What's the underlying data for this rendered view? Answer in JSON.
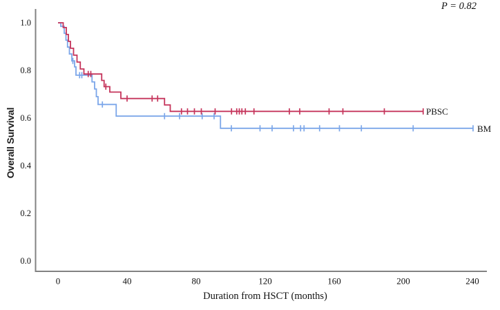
{
  "figure": {
    "p_value": "P = 0.82",
    "x_axis_title": "Duration from HSCT (months)",
    "y_axis_title": "Overall Survival",
    "series_labels": {
      "pbsc": "PBSC",
      "bm": "BM"
    }
  },
  "chart_data": {
    "type": "line",
    "subtype": "kaplan-meier-step",
    "title": "",
    "xlabel": "Duration from HSCT (months)",
    "ylabel": "Overall Survival",
    "annotation": "P = 0.82",
    "grid": false,
    "legend_position": "end-of-line",
    "x_ticks": [
      0,
      40,
      80,
      120,
      160,
      200,
      240
    ],
    "y_ticks": [
      0.0,
      0.2,
      0.4,
      0.6,
      0.8,
      1.0
    ],
    "xlim": [
      -13,
      248
    ],
    "ylim": [
      -0.045,
      1.06
    ],
    "axis_color": "#828282",
    "text_color": "#111111",
    "series": [
      {
        "name": "BM",
        "color": "#7BA6E9",
        "steps": [
          [
            0,
            1.0
          ],
          [
            1.6,
            0.985
          ],
          [
            3.6,
            0.956
          ],
          [
            4.6,
            0.927
          ],
          [
            5.5,
            0.898
          ],
          [
            6.6,
            0.869
          ],
          [
            8,
            0.84
          ],
          [
            9.6,
            0.815
          ],
          [
            10.4,
            0.78
          ],
          [
            19.7,
            0.752
          ],
          [
            21.2,
            0.722
          ],
          [
            22.2,
            0.69
          ],
          [
            23.2,
            0.657
          ],
          [
            33.7,
            0.608
          ],
          [
            94.1,
            0.557
          ]
        ],
        "end_time": 240.4,
        "final_survival": 0.557,
        "censor_times": [
          8.6,
          12.5,
          13.8,
          25.7,
          61.7,
          70.4,
          83.5,
          90.4,
          100.4,
          117,
          124,
          136.4,
          140.5,
          142.5,
          151.5,
          163,
          175.7,
          205.7,
          240.4
        ]
      },
      {
        "name": "PBSC",
        "color": "#C5345B",
        "steps": [
          [
            0,
            1.0
          ],
          [
            3,
            0.98
          ],
          [
            4.8,
            0.951
          ],
          [
            6,
            0.922
          ],
          [
            7.2,
            0.893
          ],
          [
            9,
            0.864
          ],
          [
            11,
            0.835
          ],
          [
            12.9,
            0.806
          ],
          [
            15,
            0.785
          ],
          [
            25.3,
            0.758
          ],
          [
            26.7,
            0.732
          ],
          [
            30,
            0.709
          ],
          [
            36.4,
            0.682
          ],
          [
            61.7,
            0.655
          ],
          [
            65,
            0.628
          ]
        ],
        "end_time": 211.5,
        "final_survival": 0.628,
        "censor_times": [
          17.5,
          19,
          27.7,
          40,
          54.5,
          57.7,
          71.5,
          75,
          79,
          83,
          91,
          100.5,
          103.5,
          105,
          106.5,
          108.5,
          113.5,
          134,
          140,
          157,
          165,
          189,
          211.5
        ]
      }
    ]
  }
}
